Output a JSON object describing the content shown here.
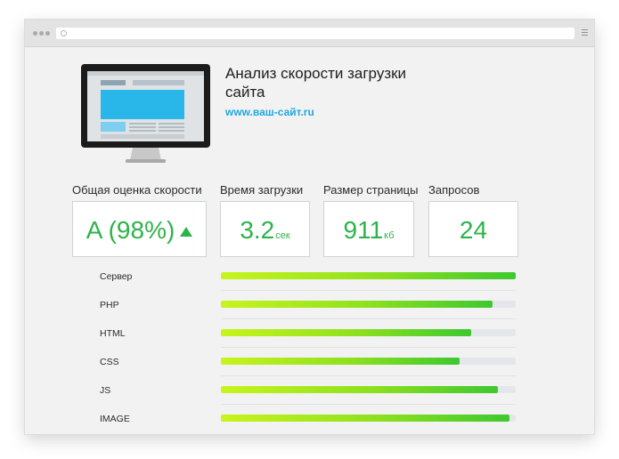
{
  "browser": {
    "icons": [
      "dots-icon",
      "url-icon",
      "menu-icon"
    ]
  },
  "header": {
    "title": "Анализ скорости загрузки сайта",
    "site": "www.ваш-сайт.ru"
  },
  "metrics": [
    {
      "label": "Общая оценка скорости",
      "value": "A (98%)",
      "unit": ""
    },
    {
      "label": "Время загрузки",
      "value": "3.2",
      "unit": "сек"
    },
    {
      "label": "Размер страницы",
      "value": "911",
      "unit": "кб"
    },
    {
      "label": "Запросов",
      "value": "24",
      "unit": ""
    }
  ],
  "bars": [
    {
      "label": "Сервер",
      "fill": 1.0
    },
    {
      "label": "PHP",
      "fill": 0.92
    },
    {
      "label": "HTML",
      "fill": 0.85
    },
    {
      "label": "CSS",
      "fill": 0.81
    },
    {
      "label": "JS",
      "fill": 0.94
    },
    {
      "label": "IMAGE",
      "fill": 0.98
    }
  ],
  "colors": {
    "accent_green": "#2db34a",
    "link_blue": "#1fa8e0"
  }
}
